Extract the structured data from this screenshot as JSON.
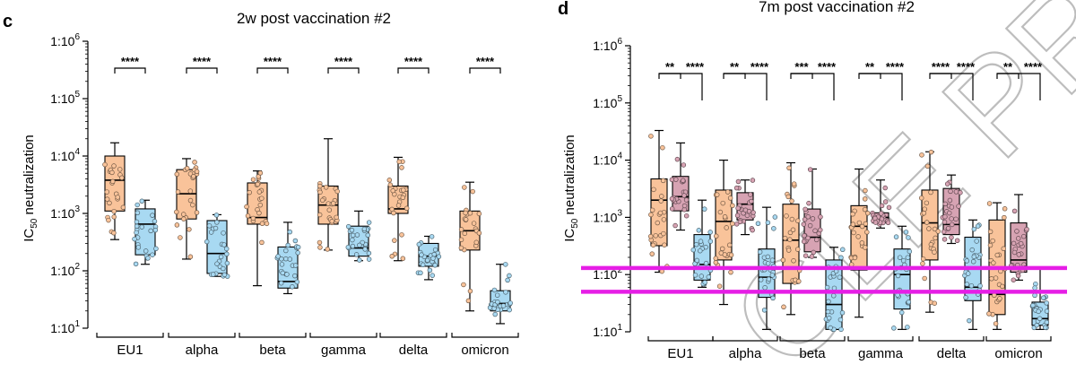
{
  "chart_data": [
    {
      "type": "box",
      "panel_letter": "c",
      "title": "2w post vaccination #2",
      "ylabel": "IC50 neutralization",
      "ylabel_main": "IC",
      "ylabel_sub": "50",
      "ylabel_rest": " neutralization",
      "yscale": "log",
      "ylim": [
        10,
        1000000
      ],
      "yticks": [
        {
          "value": 10,
          "label": "1:10",
          "exp": "1"
        },
        {
          "value": 100,
          "label": "1:10",
          "exp": "2"
        },
        {
          "value": 1000,
          "label": "1:10",
          "exp": "3"
        },
        {
          "value": 10000,
          "label": "1:10",
          "exp": "4"
        },
        {
          "value": 100000,
          "label": "1:10",
          "exp": "5"
        },
        {
          "value": 1000000,
          "label": "1:10",
          "exp": "6"
        }
      ],
      "categories": [
        "EU1",
        "alpha",
        "beta",
        "gamma",
        "delta",
        "omicron"
      ],
      "series_colors": [
        "#f9c39a",
        "#a8d9f2"
      ],
      "significance": [
        "****",
        "****",
        "****",
        "****",
        "****",
        "****"
      ],
      "groups": [
        {
          "category": "EU1",
          "boxes": [
            {
              "min": 350,
              "q1": 1100,
              "median": 3800,
              "q3": 10000,
              "max": 17000
            },
            {
              "min": 130,
              "q1": 190,
              "median": 650,
              "q3": 1200,
              "max": 1700
            }
          ]
        },
        {
          "category": "alpha",
          "boxes": [
            {
              "min": 160,
              "q1": 800,
              "median": 2200,
              "q3": 5800,
              "max": 9000
            },
            {
              "min": 80,
              "q1": 90,
              "median": 200,
              "q3": 750,
              "max": 950
            }
          ]
        },
        {
          "category": "beta",
          "boxes": [
            {
              "min": 55,
              "q1": 650,
              "median": 850,
              "q3": 3400,
              "max": 5500
            },
            {
              "min": 40,
              "q1": 50,
              "median": 65,
              "q3": 260,
              "max": 700
            }
          ]
        },
        {
          "category": "gamma",
          "boxes": [
            {
              "min": 230,
              "q1": 650,
              "median": 1400,
              "q3": 3000,
              "max": 20000
            },
            {
              "min": 150,
              "q1": 180,
              "median": 250,
              "q3": 600,
              "max": 1100
            }
          ]
        },
        {
          "category": "delta",
          "boxes": [
            {
              "min": 150,
              "q1": 1000,
              "median": 1200,
              "q3": 3000,
              "max": 9500
            },
            {
              "min": 70,
              "q1": 120,
              "median": 180,
              "q3": 300,
              "max": 400
            }
          ]
        },
        {
          "category": "omicron",
          "boxes": [
            {
              "min": 20,
              "q1": 230,
              "median": 500,
              "q3": 1100,
              "max": 3500
            },
            {
              "min": 12,
              "q1": 20,
              "median": 27,
              "q3": 45,
              "max": 130
            }
          ]
        }
      ]
    },
    {
      "type": "box",
      "panel_letter": "d",
      "title": "7m post vaccination #2",
      "ylabel": "IC50 neutralization",
      "ylabel_main": "IC",
      "ylabel_sub": "50",
      "ylabel_rest": " neutralization",
      "yscale": "log",
      "ylim": [
        10,
        1000000
      ],
      "yticks": [
        {
          "value": 10,
          "label": "1:10",
          "exp": "1"
        },
        {
          "value": 100,
          "label": "1:10",
          "exp": "2"
        },
        {
          "value": 1000,
          "label": "1:10",
          "exp": "3"
        },
        {
          "value": 10000,
          "label": "1:10",
          "exp": "4"
        },
        {
          "value": 100000,
          "label": "1:10",
          "exp": "5"
        },
        {
          "value": 1000000,
          "label": "1:10",
          "exp": "6"
        }
      ],
      "categories": [
        "EU1",
        "alpha",
        "beta",
        "gamma",
        "delta",
        "omicron"
      ],
      "series_colors": [
        "#f9c39a",
        "#d7a3b3",
        "#a8d9f2"
      ],
      "significance_pairs": [
        [
          "**",
          "****"
        ],
        [
          "**",
          "****"
        ],
        [
          "***",
          "****"
        ],
        [
          "**",
          "****"
        ],
        [
          "****",
          "****"
        ],
        [
          "**",
          "****"
        ]
      ],
      "reference_lines": [
        130,
        50
      ],
      "reference_color": "#e61ee6",
      "groups": [
        {
          "category": "EU1",
          "boxes": [
            {
              "min": 110,
              "q1": 320,
              "median": 2000,
              "q3": 4700,
              "max": 33000
            },
            {
              "min": 600,
              "q1": 1300,
              "median": 2300,
              "q3": 5200,
              "max": 20000
            },
            {
              "min": 60,
              "q1": 80,
              "median": 150,
              "q3": 500,
              "max": 2000
            }
          ]
        },
        {
          "category": "alpha",
          "boxes": [
            {
              "min": 30,
              "q1": 180,
              "median": 850,
              "q3": 3000,
              "max": 10000
            },
            {
              "min": 500,
              "q1": 900,
              "median": 1700,
              "q3": 2700,
              "max": 4500
            },
            {
              "min": 11,
              "q1": 40,
              "median": 90,
              "q3": 280,
              "max": 1500
            }
          ]
        },
        {
          "category": "beta",
          "boxes": [
            {
              "min": 20,
              "q1": 70,
              "median": 400,
              "q3": 1700,
              "max": 9000
            },
            {
              "min": 200,
              "q1": 250,
              "median": 450,
              "q3": 1400,
              "max": 7000
            },
            {
              "min": 11,
              "q1": 11,
              "median": 30,
              "q3": 180,
              "max": 300
            }
          ]
        },
        {
          "category": "gamma",
          "boxes": [
            {
              "min": 18,
              "q1": 120,
              "median": 700,
              "q3": 1600,
              "max": 7000
            },
            {
              "min": 650,
              "q1": 800,
              "median": 1000,
              "q3": 1200,
              "max": 4500
            },
            {
              "min": 11,
              "q1": 25,
              "median": 100,
              "q3": 280,
              "max": 700
            }
          ]
        },
        {
          "category": "delta",
          "boxes": [
            {
              "min": 22,
              "q1": 180,
              "median": 800,
              "q3": 3000,
              "max": 14000
            },
            {
              "min": 350,
              "q1": 500,
              "median": 750,
              "q3": 3200,
              "max": 5500
            },
            {
              "min": 11,
              "q1": 35,
              "median": 60,
              "q3": 450,
              "max": 900
            }
          ]
        },
        {
          "category": "omicron",
          "boxes": [
            {
              "min": 11,
              "q1": 20,
              "median": 45,
              "q3": 900,
              "max": 1800
            },
            {
              "min": 80,
              "q1": 110,
              "median": 180,
              "q3": 800,
              "max": 2500
            },
            {
              "min": 11,
              "q1": 13,
              "median": 17,
              "q3": 33,
              "max": 130
            }
          ]
        }
      ]
    }
  ]
}
